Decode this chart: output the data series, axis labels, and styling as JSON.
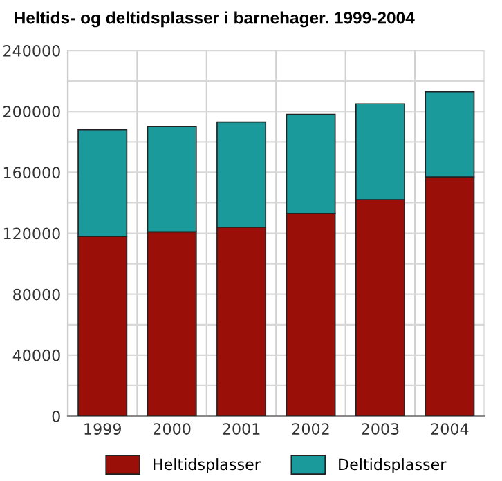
{
  "chart_data": {
    "type": "bar",
    "title": "Heltids- og deltidsplasser i barnehager. 1999-2004",
    "stacked": true,
    "categories": [
      "1999",
      "2000",
      "2001",
      "2002",
      "2003",
      "2004"
    ],
    "series": [
      {
        "name": "Heltidsplasser",
        "color": "#9a0f08",
        "values": [
          118000,
          121000,
          124000,
          133000,
          142000,
          157000
        ]
      },
      {
        "name": "Deltidsplasser",
        "color": "#1a9a9a",
        "values": [
          70000,
          69000,
          69000,
          65000,
          63000,
          56000
        ]
      }
    ],
    "ylim": [
      0,
      240000
    ],
    "yticks": [
      0,
      {
        "value": 20000,
        "label": null
      },
      40000,
      {
        "value": 60000,
        "label": null
      },
      80000,
      {
        "value": 100000,
        "label": null
      },
      120000,
      {
        "value": 140000,
        "label": null
      },
      160000,
      {
        "value": 180000,
        "label": null
      },
      200000,
      {
        "value": 220000,
        "label": null
      },
      240000
    ],
    "grid": true,
    "legend": "bottom"
  }
}
